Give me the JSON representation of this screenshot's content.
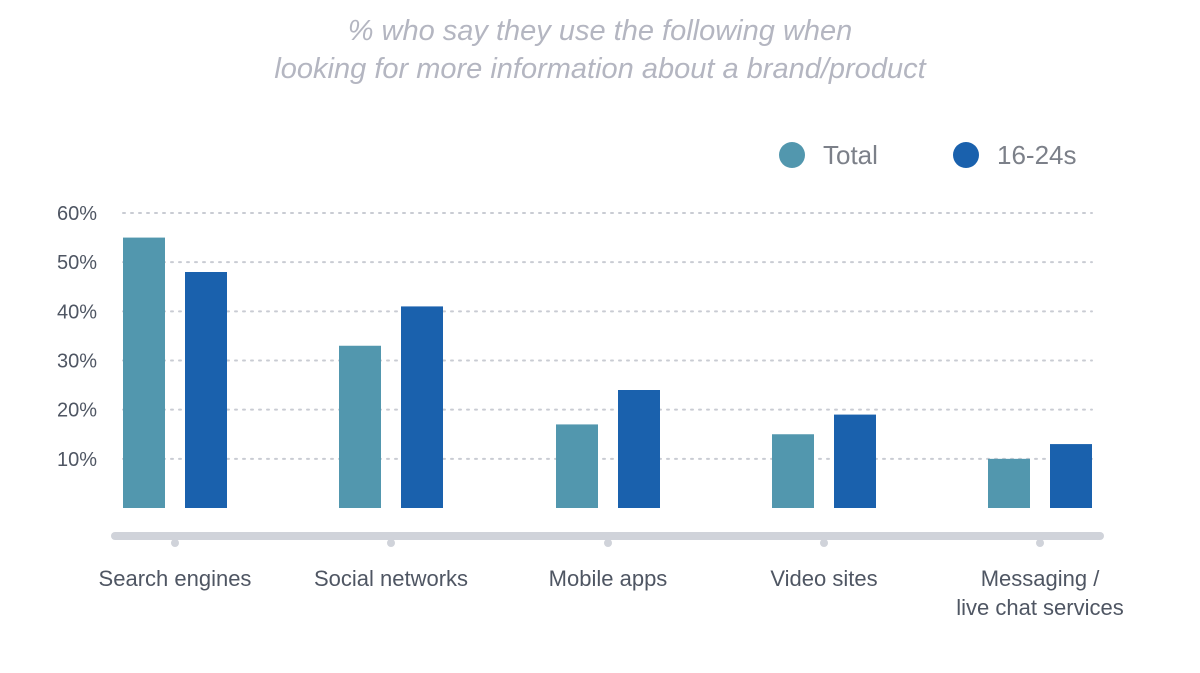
{
  "chart_data": {
    "type": "bar",
    "title": "% who say they use the following when looking for more information about a brand/product",
    "title_lines": [
      "% who say they use the following when",
      "looking for more information about a brand/product"
    ],
    "categories": [
      [
        "Search engines"
      ],
      [
        "Social networks"
      ],
      [
        "Mobile apps"
      ],
      [
        "Video sites"
      ],
      [
        "Messaging /",
        "live chat services"
      ]
    ],
    "series": [
      {
        "name": "Total",
        "values": [
          55,
          33,
          17,
          15,
          10
        ]
      },
      {
        "name": "16-24s",
        "values": [
          48,
          41,
          24,
          19,
          13
        ]
      }
    ],
    "y_ticks": [
      {
        "value": 10,
        "label": "10%"
      },
      {
        "value": 20,
        "label": "20%"
      },
      {
        "value": 30,
        "label": "30%"
      },
      {
        "value": 40,
        "label": "40%"
      },
      {
        "value": 50,
        "label": "50%"
      },
      {
        "value": 60,
        "label": "60%"
      }
    ],
    "ylim": [
      0,
      60
    ],
    "grid": true,
    "legend_position": "top-right"
  },
  "colors": {
    "total": "#5297ae",
    "youth": "#1a61ad",
    "axis": "#d0d3da"
  }
}
